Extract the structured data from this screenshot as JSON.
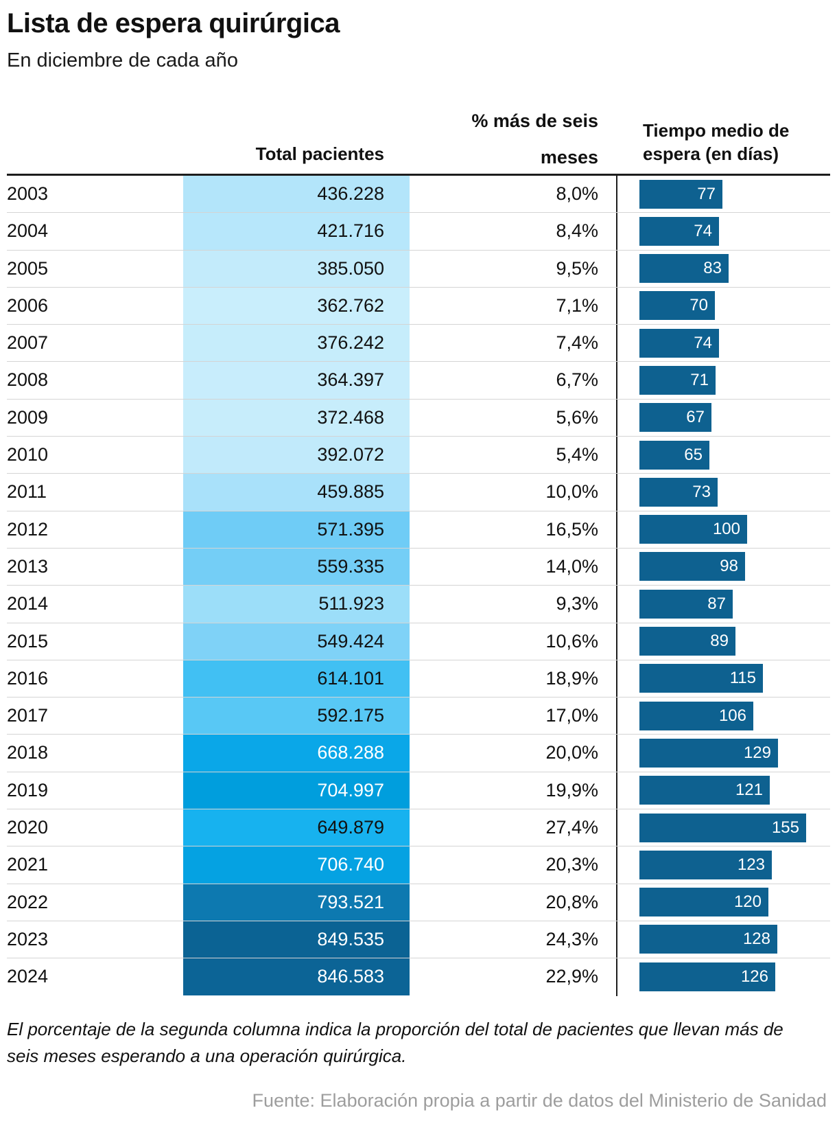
{
  "title": "Lista de espera quirúrgica",
  "subtitle": "En diciembre de cada año",
  "table": {
    "headers": {
      "total": "Total pacientes",
      "pct": "% más de seis meses",
      "wait": "Tiempo medio de espera (en días)"
    },
    "rows": [
      {
        "year": "2003",
        "total": "436.228",
        "pct": "8,0%",
        "days": 77,
        "cell_color": "#b3e5fa",
        "value_color": "#111111"
      },
      {
        "year": "2004",
        "total": "421.716",
        "pct": "8,4%",
        "days": 74,
        "cell_color": "#b7e7fb",
        "value_color": "#111111"
      },
      {
        "year": "2005",
        "total": "385.050",
        "pct": "9,5%",
        "days": 83,
        "cell_color": "#c3ebfb",
        "value_color": "#111111"
      },
      {
        "year": "2006",
        "total": "362.762",
        "pct": "7,1%",
        "days": 70,
        "cell_color": "#c9eefc",
        "value_color": "#111111"
      },
      {
        "year": "2007",
        "total": "376.242",
        "pct": "7,4%",
        "days": 74,
        "cell_color": "#c6edfb",
        "value_color": "#111111"
      },
      {
        "year": "2008",
        "total": "364.397",
        "pct": "6,7%",
        "days": 71,
        "cell_color": "#c8edfc",
        "value_color": "#111111"
      },
      {
        "year": "2009",
        "total": "372.468",
        "pct": "5,6%",
        "days": 67,
        "cell_color": "#c7edfb",
        "value_color": "#111111"
      },
      {
        "year": "2010",
        "total": "392.072",
        "pct": "5,4%",
        "days": 65,
        "cell_color": "#c1eafb",
        "value_color": "#111111"
      },
      {
        "year": "2011",
        "total": "459.885",
        "pct": "10,0%",
        "days": 73,
        "cell_color": "#a9e1fa",
        "value_color": "#111111"
      },
      {
        "year": "2012",
        "total": "571.395",
        "pct": "16,5%",
        "days": 100,
        "cell_color": "#6fccf6",
        "value_color": "#111111"
      },
      {
        "year": "2013",
        "total": "559.335",
        "pct": "14,0%",
        "days": 98,
        "cell_color": "#74cef6",
        "value_color": "#111111"
      },
      {
        "year": "2014",
        "total": "511.923",
        "pct": "9,3%",
        "days": 87,
        "cell_color": "#9cdef9",
        "value_color": "#111111"
      },
      {
        "year": "2015",
        "total": "549.424",
        "pct": "10,6%",
        "days": 89,
        "cell_color": "#7fd2f7",
        "value_color": "#111111"
      },
      {
        "year": "2016",
        "total": "614.101",
        "pct": "18,9%",
        "days": 115,
        "cell_color": "#41c0f3",
        "value_color": "#111111"
      },
      {
        "year": "2017",
        "total": "592.175",
        "pct": "17,0%",
        "days": 106,
        "cell_color": "#58c8f5",
        "value_color": "#111111"
      },
      {
        "year": "2018",
        "total": "668.288",
        "pct": "20,0%",
        "days": 129,
        "cell_color": "#0aa7e8",
        "value_color": "#ffffff"
      },
      {
        "year": "2019",
        "total": "704.997",
        "pct": "19,9%",
        "days": 121,
        "cell_color": "#009edd",
        "value_color": "#ffffff"
      },
      {
        "year": "2020",
        "total": "649.879",
        "pct": "27,4%",
        "days": 155,
        "cell_color": "#17b2ef",
        "value_color": "#111111"
      },
      {
        "year": "2021",
        "total": "706.740",
        "pct": "20,3%",
        "days": 123,
        "cell_color": "#05a2e2",
        "value_color": "#ffffff"
      },
      {
        "year": "2022",
        "total": "793.521",
        "pct": "20,8%",
        "days": 120,
        "cell_color": "#0d79b0",
        "value_color": "#ffffff"
      },
      {
        "year": "2023",
        "total": "849.535",
        "pct": "24,3%",
        "days": 128,
        "cell_color": "#0b6394",
        "value_color": "#ffffff"
      },
      {
        "year": "2024",
        "total": "846.583",
        "pct": "22,9%",
        "days": 126,
        "cell_color": "#0c6496",
        "value_color": "#ffffff"
      }
    ]
  },
  "footnote": "El porcentaje de la segunda columna indica la proporción del total de pacientes que llevan más de seis meses esperando a una operación quirúrgica.",
  "source": "Fuente: Elaboración propia a partir de datos del Ministerio de Sanidad",
  "colors": {
    "bar": "#0e6190",
    "rule": "#1d1d1d",
    "separator": "#d4d4d4",
    "source_text": "#9d9d9d"
  },
  "chart_data": {
    "type": "table",
    "title": "Lista de espera quirúrgica",
    "subtitle": "En diciembre de cada año",
    "categories": [
      2003,
      2004,
      2005,
      2006,
      2007,
      2008,
      2009,
      2010,
      2011,
      2012,
      2013,
      2014,
      2015,
      2016,
      2017,
      2018,
      2019,
      2020,
      2021,
      2022,
      2023,
      2024
    ],
    "series": [
      {
        "name": "Total pacientes",
        "values": [
          436228,
          421716,
          385050,
          362762,
          376242,
          364397,
          372468,
          392072,
          459885,
          571395,
          559335,
          511923,
          549424,
          614101,
          592175,
          668288,
          704997,
          649879,
          706740,
          793521,
          849535,
          846583
        ],
        "encoding": "cell background shade (light to dark blue by value)"
      },
      {
        "name": "% más de seis meses",
        "values": [
          8.0,
          8.4,
          9.5,
          7.1,
          7.4,
          6.7,
          5.6,
          5.4,
          10.0,
          16.5,
          14.0,
          9.3,
          10.6,
          18.9,
          17.0,
          20.0,
          19.9,
          27.4,
          20.3,
          20.8,
          24.3,
          22.9
        ],
        "encoding": "text, comma decimal with % sign"
      },
      {
        "name": "Tiempo medio de espera (en días)",
        "values": [
          77,
          74,
          83,
          70,
          74,
          71,
          67,
          65,
          73,
          100,
          98,
          87,
          89,
          115,
          106,
          129,
          121,
          155,
          123,
          120,
          128,
          126
        ],
        "encoding": "horizontal bar with value label inside"
      }
    ],
    "bar_axis_max": 155,
    "legend_position": "none",
    "grid": "horizontal row separators",
    "notes": "El porcentaje de la segunda columna indica la proporción del total de pacientes que llevan más de seis meses esperando a una operación quirúrgica."
  }
}
